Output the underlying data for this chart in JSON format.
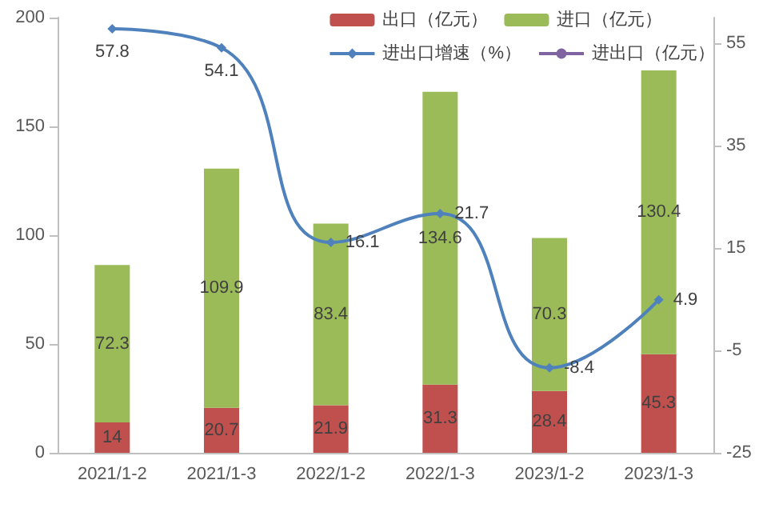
{
  "chart_data": {
    "type": "bar",
    "stacked": true,
    "categories": [
      "2021/1-2",
      "2021/1-3",
      "2022/1-2",
      "2022/1-3",
      "2023/1-2",
      "2023/1-3"
    ],
    "series": [
      {
        "name": "出口（亿元）",
        "color": "#c0504d",
        "values": [
          14,
          20.7,
          21.9,
          31.3,
          28.4,
          45.3
        ]
      },
      {
        "name": "进口（亿元）",
        "color": "#9bbb59",
        "values": [
          72.3,
          109.9,
          83.4,
          134.6,
          70.3,
          130.4
        ]
      },
      {
        "name": "进出口增速（%）",
        "type": "line",
        "axis": "y2",
        "color": "#4f81bd",
        "marker": "diamond",
        "values": [
          57.8,
          54.1,
          16.1,
          21.7,
          -8.4,
          4.9
        ]
      },
      {
        "name": "进出口（亿元）",
        "type": "line",
        "color": "#8064a2",
        "marker": "circle",
        "values": [
          null,
          null,
          null,
          null,
          null,
          null
        ]
      }
    ],
    "ylim": [
      0,
      200
    ],
    "yticks": [
      0,
      50,
      100,
      150,
      200
    ],
    "y2lim": [
      -25,
      60
    ],
    "y2ticks": [
      -25,
      -5,
      15,
      35,
      55
    ],
    "data_labels": true,
    "grid": false,
    "legend": "top right"
  }
}
